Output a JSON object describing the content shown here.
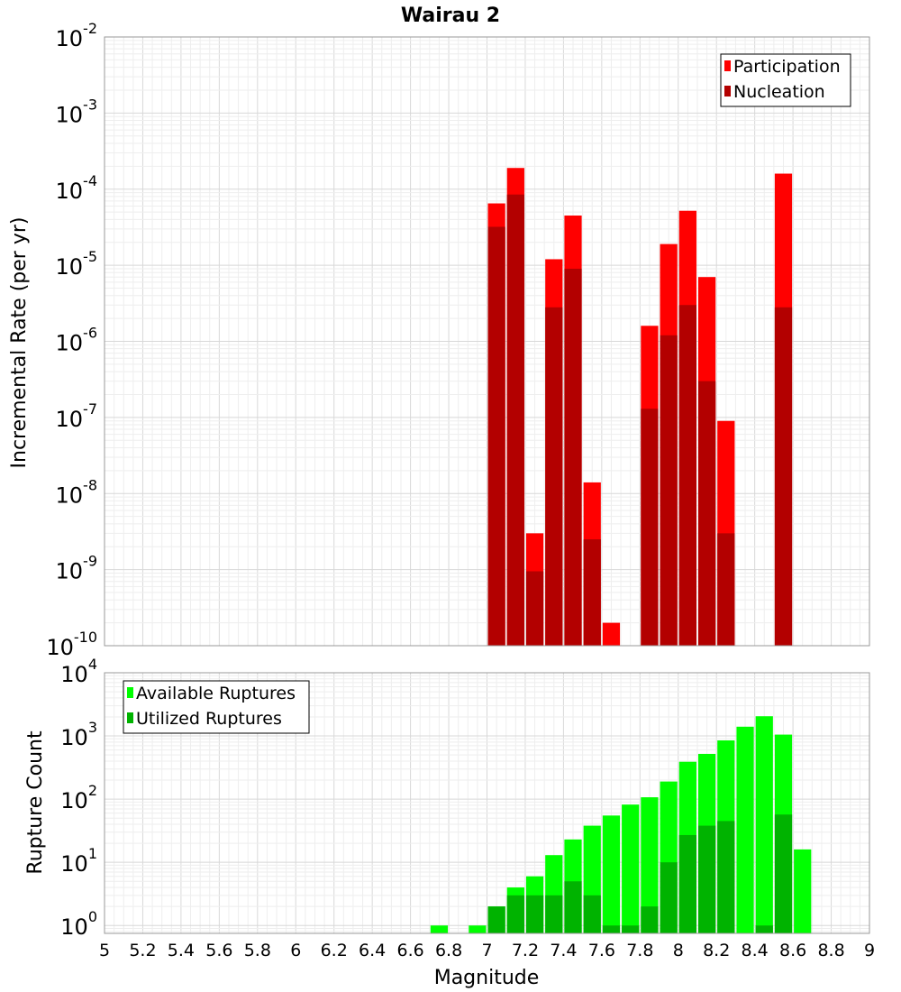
{
  "chart_data": [
    {
      "type": "bar",
      "title": "Wairau 2",
      "ylabel": "Incremental Rate (per yr)",
      "xlabel": "",
      "xlim": [
        5,
        9
      ],
      "ylim": [
        1e-10,
        0.01
      ],
      "yscale": "log",
      "bar_width": 0.1,
      "grid": true,
      "legend_position": "top-right",
      "series": [
        {
          "name": "Participation",
          "color": "#ff0000",
          "x": [
            7.05,
            7.15,
            7.25,
            7.35,
            7.45,
            7.55,
            7.65,
            7.85,
            7.95,
            8.05,
            8.15,
            8.25,
            8.55
          ],
          "values": [
            6.5e-05,
            0.00019,
            3e-09,
            1.2e-05,
            4.5e-05,
            1.4e-08,
            2e-10,
            1.6e-06,
            1.9e-05,
            5.2e-05,
            7e-06,
            9e-08,
            0.00016
          ]
        },
        {
          "name": "Nucleation",
          "color": "#b30000",
          "x": [
            7.05,
            7.15,
            7.25,
            7.35,
            7.45,
            7.55,
            7.85,
            7.95,
            8.05,
            8.15,
            8.25,
            8.55
          ],
          "values": [
            3.2e-05,
            8.5e-05,
            9.5e-10,
            2.8e-06,
            9e-06,
            2.5e-09,
            1.3e-07,
            1.2e-06,
            3e-06,
            3e-07,
            3e-09,
            2.8e-06
          ]
        }
      ],
      "y_ticks": [
        {
          "base": "10",
          "exp": "-10"
        },
        {
          "base": "10",
          "exp": "-9"
        },
        {
          "base": "10",
          "exp": "-8"
        },
        {
          "base": "10",
          "exp": "-7"
        },
        {
          "base": "10",
          "exp": "-6"
        },
        {
          "base": "10",
          "exp": "-5"
        },
        {
          "base": "10",
          "exp": "-4"
        },
        {
          "base": "10",
          "exp": "-3"
        },
        {
          "base": "10",
          "exp": "-2"
        }
      ]
    },
    {
      "type": "bar",
      "title": "",
      "ylabel": "Rupture Count",
      "xlabel": "Magnitude",
      "xlim": [
        5,
        9
      ],
      "ylim": [
        0.75,
        10000
      ],
      "yscale": "log",
      "bar_width": 0.1,
      "grid": true,
      "legend_position": "top-left",
      "series": [
        {
          "name": "Available Ruptures",
          "color": "#00ff00",
          "x": [
            6.75,
            6.95,
            7.05,
            7.15,
            7.25,
            7.35,
            7.45,
            7.55,
            7.65,
            7.75,
            7.85,
            7.95,
            8.05,
            8.15,
            8.25,
            8.35,
            8.45,
            8.55,
            8.65
          ],
          "values": [
            1,
            1,
            2,
            4,
            6,
            13,
            23,
            38,
            55,
            82,
            107,
            190,
            390,
            520,
            850,
            1400,
            2050,
            1050,
            16
          ]
        },
        {
          "name": "Utilized Ruptures",
          "color": "#00b300",
          "x": [
            7.05,
            7.15,
            7.25,
            7.35,
            7.45,
            7.55,
            7.65,
            7.75,
            7.85,
            7.95,
            8.05,
            8.15,
            8.25,
            8.45,
            8.55
          ],
          "values": [
            2,
            3,
            3,
            3,
            5,
            3,
            1,
            1,
            2,
            10,
            27,
            38,
            45,
            1,
            57
          ]
        }
      ],
      "y_ticks": [
        {
          "base": "10",
          "exp": "0"
        },
        {
          "base": "10",
          "exp": "1"
        },
        {
          "base": "10",
          "exp": "2"
        },
        {
          "base": "10",
          "exp": "3"
        },
        {
          "base": "10",
          "exp": "4"
        }
      ],
      "x_tick_labels": [
        "5",
        "5.2",
        "5.4",
        "5.6",
        "5.8",
        "6",
        "6.2",
        "6.4",
        "6.6",
        "6.8",
        "7",
        "7.2",
        "7.4",
        "7.6",
        "7.8",
        "8",
        "8.2",
        "8.4",
        "8.6",
        "8.8",
        "9"
      ]
    }
  ]
}
